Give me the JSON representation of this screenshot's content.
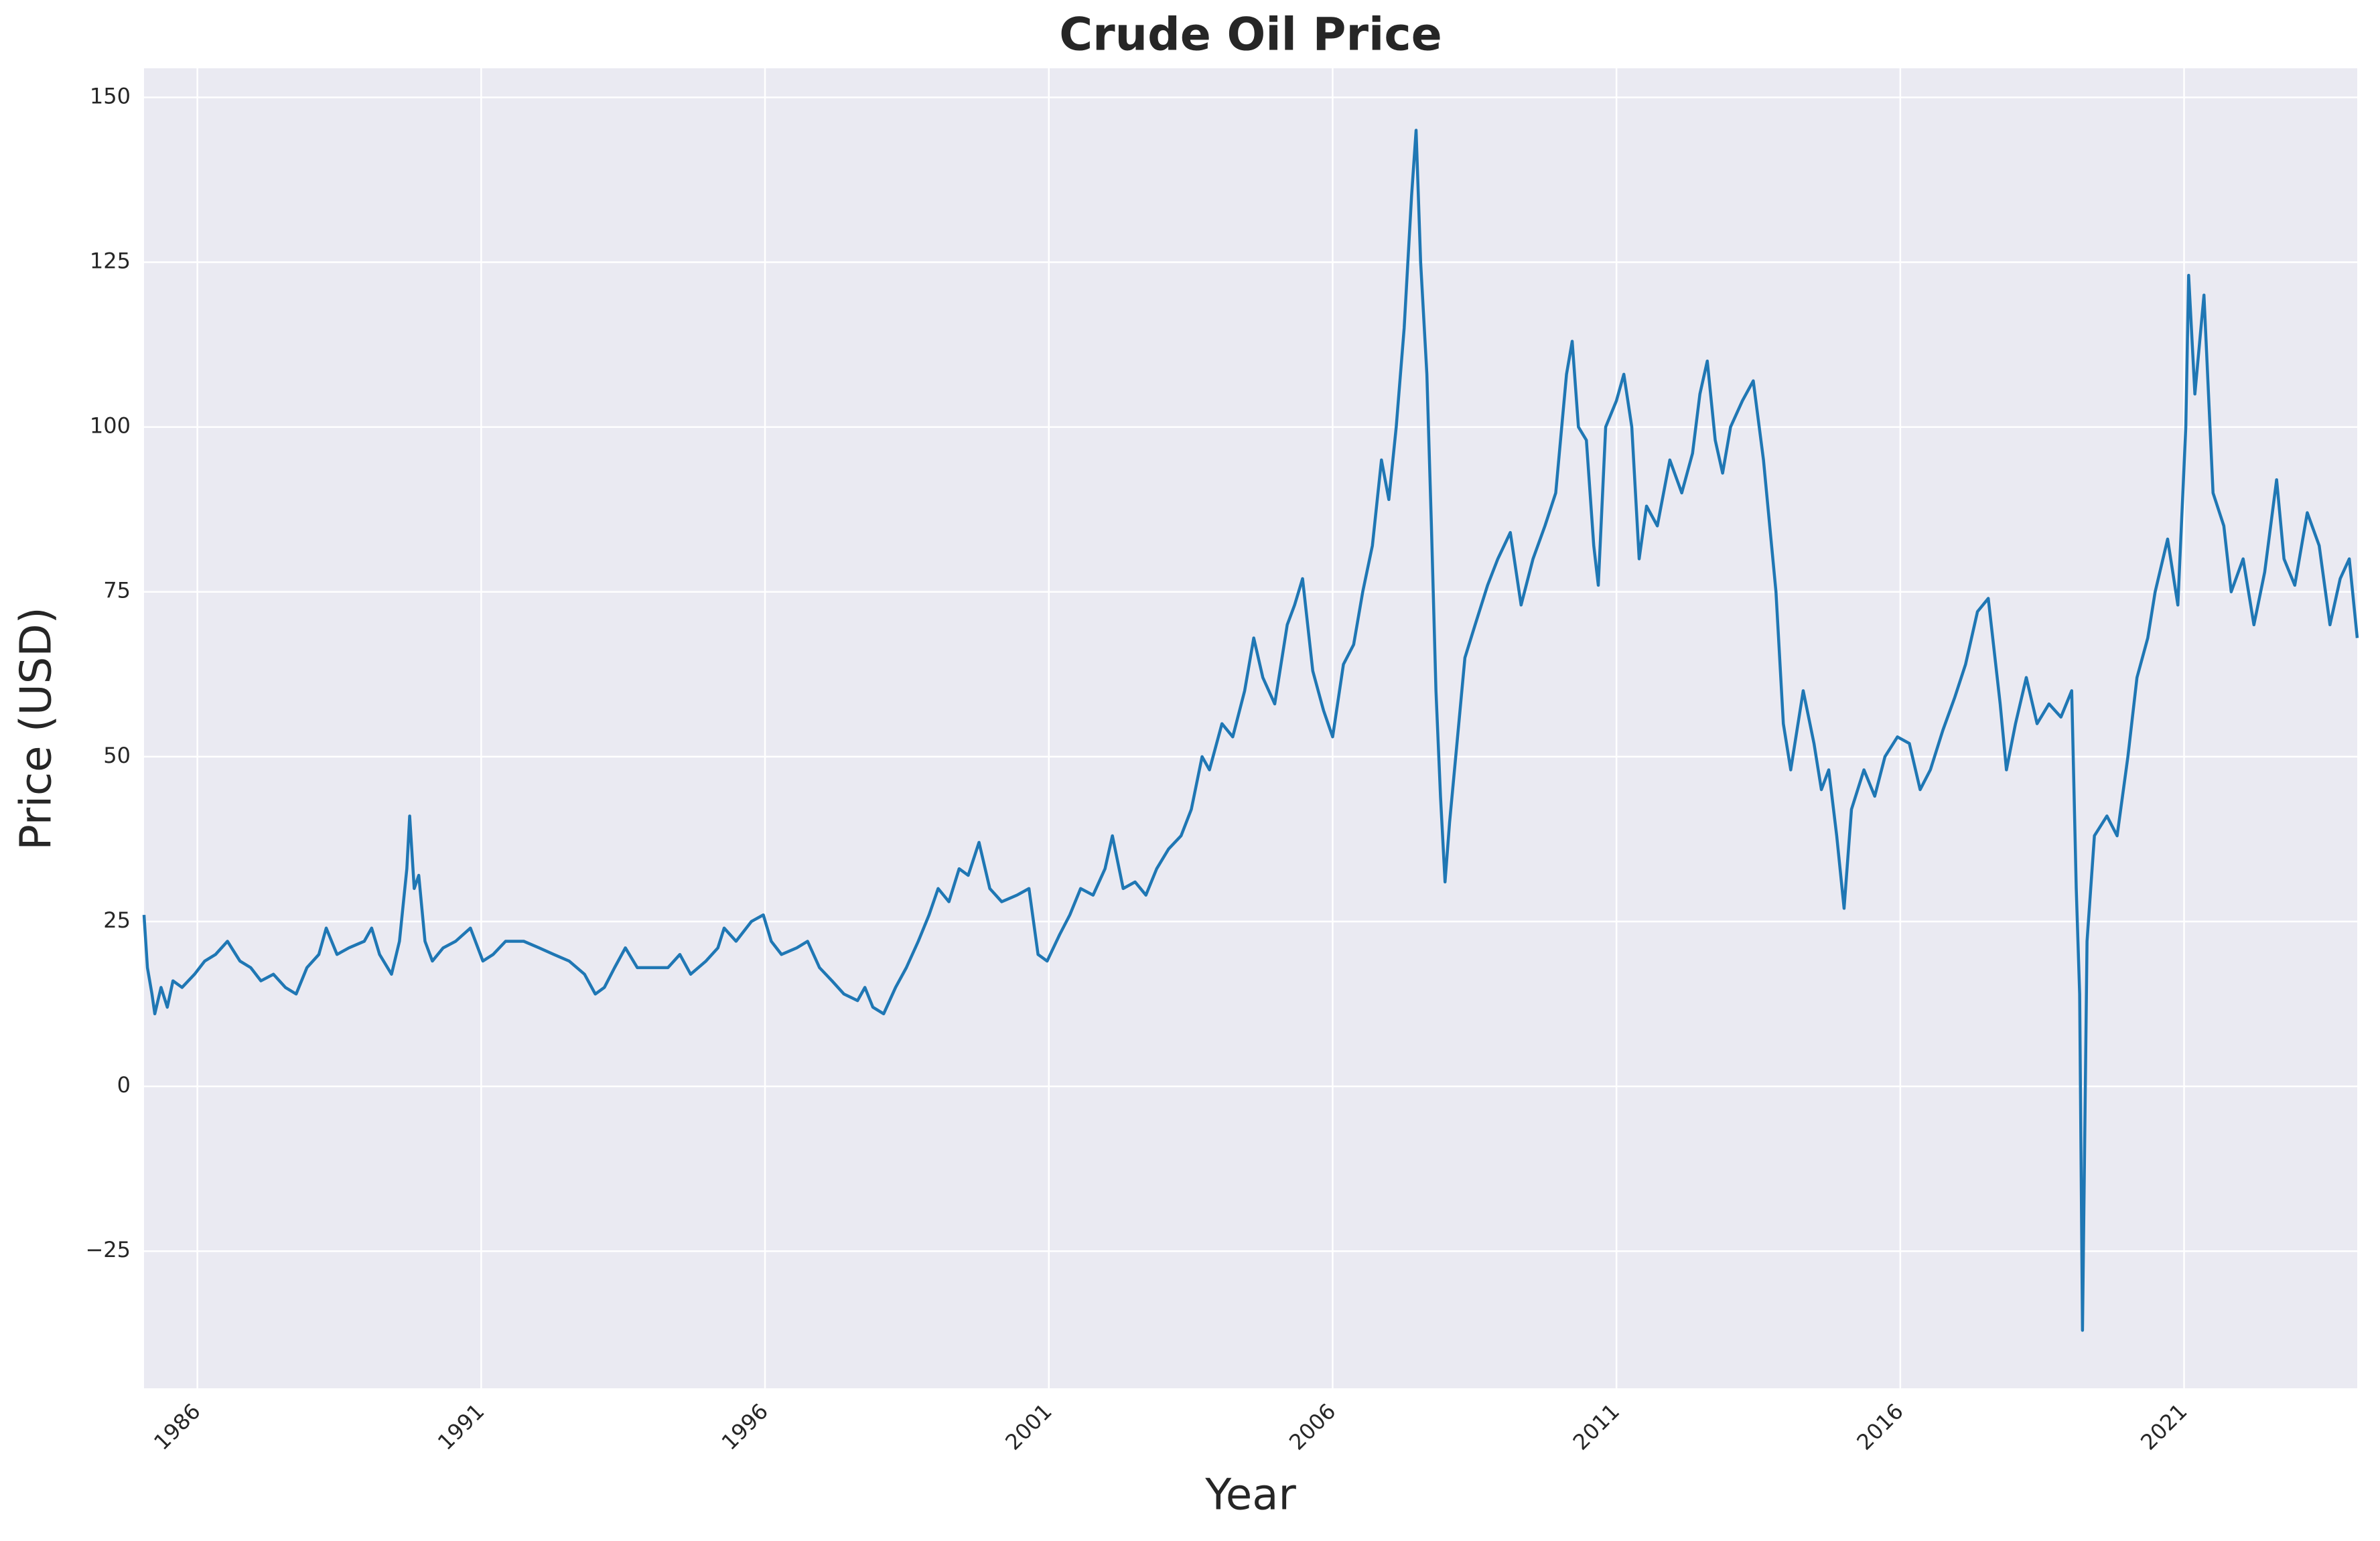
{
  "chart_data": {
    "type": "line",
    "title": "Crude Oil Price",
    "x_label": "Year",
    "y_label": "Price (USD)",
    "color": "#1f77b4",
    "grid": true,
    "x": [
      1985.06,
      1985.12,
      1985.2,
      1985.25,
      1985.36,
      1985.47,
      1985.57,
      1985.73,
      1985.95,
      1986.13,
      1986.32,
      1986.53,
      1986.75,
      1986.94,
      1987.12,
      1987.34,
      1987.55,
      1987.74,
      1987.93,
      1988.14,
      1988.27,
      1988.46,
      1988.67,
      1988.94,
      1989.07,
      1989.21,
      1989.42,
      1989.56,
      1989.69,
      1989.74,
      1989.82,
      1989.9,
      1990.01,
      1990.14,
      1990.33,
      1990.55,
      1990.81,
      1991.03,
      1991.21,
      1991.43,
      1991.75,
      1992.02,
      1992.28,
      1992.55,
      1992.82,
      1993.01,
      1993.17,
      1993.35,
      1993.54,
      1993.75,
      1994.02,
      1994.29,
      1994.5,
      1994.69,
      1994.96,
      1995.17,
      1995.28,
      1995.49,
      1995.76,
      1995.97,
      1996.11,
      1996.29,
      1996.56,
      1996.75,
      1996.96,
      1997.18,
      1997.39,
      1997.63,
      1997.76,
      1997.9,
      1998.09,
      1998.3,
      1998.49,
      1998.7,
      1998.89,
      1999.05,
      1999.24,
      1999.42,
      1999.58,
      1999.77,
      1999.96,
      2000.17,
      2000.44,
      2000.65,
      2000.81,
      2000.97,
      2001.19,
      2001.37,
      2001.56,
      2001.78,
      2001.99,
      2002.12,
      2002.31,
      2002.52,
      2002.71,
      2002.9,
      2003.11,
      2003.33,
      2003.51,
      2003.7,
      2003.83,
      2004.05,
      2004.24,
      2004.45,
      2004.61,
      2004.77,
      2004.98,
      2005.2,
      2005.33,
      2005.47,
      2005.65,
      2005.84,
      2006.0,
      2006.19,
      2006.37,
      2006.53,
      2006.7,
      2006.86,
      2006.99,
      2007.12,
      2007.26,
      2007.39,
      2007.47,
      2007.55,
      2007.66,
      2007.74,
      2007.82,
      2007.9,
      2007.98,
      2008.06,
      2008.19,
      2008.33,
      2008.51,
      2008.73,
      2008.91,
      2009.13,
      2009.32,
      2009.53,
      2009.74,
      2009.93,
      2010.12,
      2010.22,
      2010.33,
      2010.47,
      2010.6,
      2010.68,
      2010.81,
      2011.0,
      2011.13,
      2011.27,
      2011.4,
      2011.53,
      2011.72,
      2011.94,
      2012.15,
      2012.34,
      2012.47,
      2012.6,
      2012.74,
      2012.87,
      2013.01,
      2013.22,
      2013.41,
      2013.59,
      2013.81,
      2013.94,
      2014.07,
      2014.29,
      2014.48,
      2014.61,
      2014.74,
      2014.88,
      2015.01,
      2015.14,
      2015.36,
      2015.55,
      2015.73,
      2015.95,
      2016.16,
      2016.35,
      2016.53,
      2016.75,
      2016.96,
      2017.15,
      2017.36,
      2017.55,
      2017.76,
      2017.87,
      2018.03,
      2018.22,
      2018.41,
      2018.62,
      2018.83,
      2019.02,
      2019.1,
      2019.16,
      2019.21,
      2019.29,
      2019.42,
      2019.64,
      2019.82,
      2020.01,
      2020.17,
      2020.36,
      2020.49,
      2020.71,
      2020.89,
      2021.03,
      2021.08,
      2021.19,
      2021.35,
      2021.51,
      2021.7,
      2021.83,
      2022.04,
      2022.23,
      2022.42,
      2022.63,
      2022.76,
      2022.95,
      2023.17,
      2023.38,
      2023.57,
      2023.75,
      2023.91,
      2024.05
    ],
    "values": [
      26,
      18,
      14,
      11,
      15,
      12,
      16,
      15,
      17,
      19,
      20,
      22,
      19,
      18,
      16,
      17,
      15,
      14,
      18,
      20,
      24,
      20,
      21,
      22,
      24,
      20,
      17,
      22,
      33,
      41,
      30,
      32,
      22,
      19,
      21,
      22,
      24,
      19,
      20,
      22,
      22,
      21,
      20,
      19,
      17,
      14,
      15,
      18,
      21,
      18,
      18,
      18,
      20,
      17,
      19,
      21,
      24,
      22,
      25,
      26,
      22,
      20,
      21,
      22,
      18,
      16,
      14,
      13,
      15,
      12,
      11,
      15,
      18,
      22,
      26,
      30,
      28,
      33,
      32,
      37,
      30,
      28,
      29,
      30,
      20,
      19,
      23,
      26,
      30,
      29,
      33,
      38,
      30,
      31,
      29,
      33,
      36,
      38,
      42,
      50,
      48,
      55,
      53,
      60,
      68,
      62,
      58,
      70,
      73,
      77,
      63,
      57,
      53,
      64,
      67,
      75,
      82,
      95,
      89,
      100,
      115,
      135,
      145,
      125,
      108,
      85,
      60,
      44,
      31,
      40,
      52,
      65,
      70,
      76,
      80,
      84,
      73,
      80,
      85,
      90,
      108,
      113,
      100,
      98,
      82,
      76,
      100,
      104,
      108,
      100,
      80,
      88,
      85,
      95,
      90,
      96,
      105,
      110,
      98,
      93,
      100,
      104,
      107,
      95,
      75,
      55,
      48,
      60,
      52,
      45,
      48,
      38,
      27,
      42,
      48,
      44,
      50,
      53,
      52,
      45,
      48,
      54,
      59,
      64,
      72,
      74,
      58,
      48,
      55,
      62,
      55,
      58,
      56,
      60,
      30,
      14,
      -37,
      22,
      38,
      41,
      38,
      50,
      62,
      68,
      75,
      83,
      73,
      100,
      123,
      105,
      120,
      90,
      85,
      75,
      80,
      70,
      78,
      92,
      80,
      76,
      87,
      82,
      70,
      77,
      80,
      68
    ],
    "xlim": [
      1985.06,
      2024.05
    ],
    "xticks": [
      1986,
      1991,
      1996,
      2001,
      2006,
      2011,
      2016,
      2021
    ],
    "ylim": [
      -45.8,
      154.4
    ],
    "yticks": [
      {
        "value": -25,
        "label": "−25"
      },
      0,
      25,
      50,
      75,
      100,
      125,
      150
    ]
  }
}
